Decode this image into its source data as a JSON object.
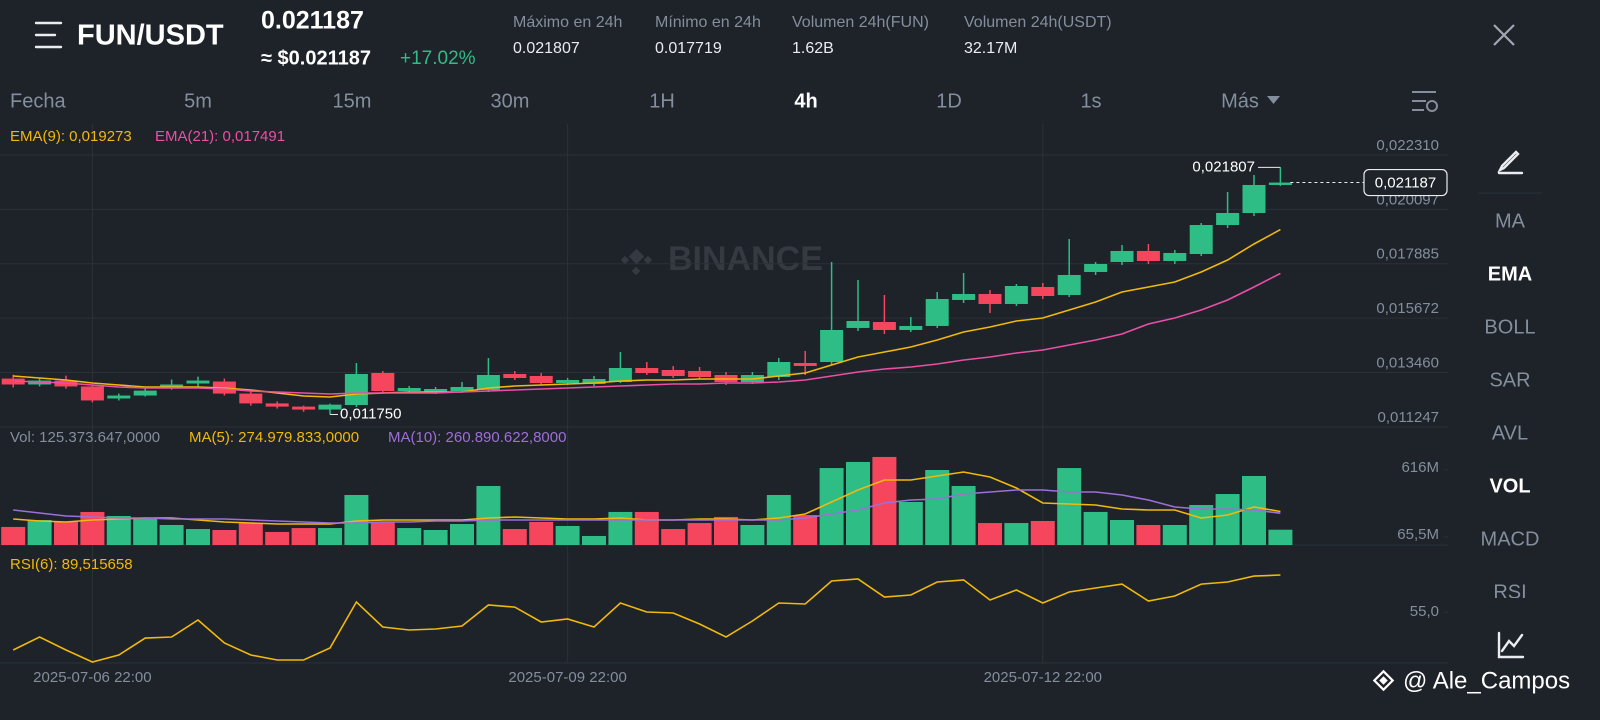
{
  "header": {
    "pair": "FUN/USDT",
    "price": "0.021187",
    "price_usd": "≈ $0.021187",
    "change": "+17.02%",
    "stats": [
      {
        "label": "Máximo en 24h",
        "value": "0.021807"
      },
      {
        "label": "Mínimo en 24h",
        "value": "0.017719"
      },
      {
        "label": "Volumen 24h(FUN)",
        "value": "1.62B"
      },
      {
        "label": "Volumen 24h(USDT)",
        "value": "32.17M"
      }
    ]
  },
  "tabs": [
    {
      "label": "Fecha",
      "active": false
    },
    {
      "label": "5m",
      "active": false
    },
    {
      "label": "15m",
      "active": false
    },
    {
      "label": "30m",
      "active": false
    },
    {
      "label": "1H",
      "active": false
    },
    {
      "label": "4h",
      "active": true
    },
    {
      "label": "1D",
      "active": false
    },
    {
      "label": "1s",
      "active": false
    },
    {
      "label": "Más",
      "active": false
    }
  ],
  "side_menu": [
    {
      "label": "MA",
      "active": false
    },
    {
      "label": "EMA",
      "active": true
    },
    {
      "label": "BOLL",
      "active": false
    },
    {
      "label": "SAR",
      "active": false
    },
    {
      "label": "AVL",
      "active": false
    },
    {
      "label": "VOL",
      "active": true
    },
    {
      "label": "MACD",
      "active": false
    },
    {
      "label": "RSI",
      "active": false
    }
  ],
  "watermark": "BINANCE",
  "credit": "@ Ale_Campos",
  "chart_data": [
    {
      "type": "candlestick",
      "up_color": "#2ebd85",
      "down_color": "#f6465d",
      "categories": [
        null,
        null,
        null,
        "2025-07-06 22:00",
        null,
        null,
        null,
        null,
        null,
        null,
        null,
        null,
        null,
        null,
        null,
        null,
        null,
        null,
        null,
        null,
        null,
        "2025-07-09 22:00",
        null,
        null,
        null,
        null,
        null,
        null,
        null,
        null,
        null,
        null,
        null,
        null,
        null,
        null,
        null,
        null,
        null,
        "2025-07-12 22:00",
        null,
        null,
        null,
        null,
        null,
        null,
        null,
        null,
        null
      ],
      "open": [
        0.01321,
        0.01297,
        0.01313,
        0.01289,
        0.0124,
        0.01252,
        0.01285,
        0.01301,
        0.01309,
        0.0126,
        0.0122,
        0.01207,
        0.01195,
        0.012135,
        0.013438,
        0.012705,
        0.012664,
        0.012705,
        0.012746,
        0.013397,
        0.013316,
        0.01303,
        0.01299,
        0.013071,
        0.013641,
        0.01356,
        0.013519,
        0.013356,
        0.013071,
        0.013275,
        0.013844,
        0.013885,
        0.01527,
        0.015513,
        0.015188,
        0.015351,
        0.016409,
        0.016653,
        0.016246,
        0.016938,
        0.016612,
        0.017548,
        0.017955,
        0.018403,
        0.017996,
        0.01828,
        0.01946,
        0.019949,
        0.021089
      ],
      "high": [
        0.01337,
        0.01321,
        0.01333,
        0.01297,
        0.0126,
        0.01285,
        0.01317,
        0.01329,
        0.01321,
        0.01272,
        0.01228,
        0.01211,
        0.01219,
        0.013844,
        0.013519,
        0.012908,
        0.012868,
        0.013071,
        0.014048,
        0.013519,
        0.013438,
        0.013234,
        0.013316,
        0.014292,
        0.013885,
        0.013723,
        0.013682,
        0.013478,
        0.013478,
        0.014048,
        0.014333,
        0.017955,
        0.017223,
        0.016612,
        0.015717,
        0.016734,
        0.017507,
        0.016815,
        0.01706,
        0.0171,
        0.018891,
        0.017955,
        0.018647,
        0.018688,
        0.018444,
        0.019542,
        0.020804,
        0.021496,
        0.021807
      ],
      "low": [
        0.01285,
        0.01289,
        0.0128,
        0.01224,
        0.01232,
        0.01248,
        0.01276,
        0.01285,
        0.01252,
        0.01211,
        0.01199,
        0.01186,
        0.01175,
        0.012054,
        0.012623,
        0.012623,
        0.012583,
        0.012664,
        0.012664,
        0.013153,
        0.012949,
        0.012949,
        0.012908,
        0.01303,
        0.013356,
        0.013234,
        0.013193,
        0.012949,
        0.01299,
        0.013153,
        0.013356,
        0.013763,
        0.015147,
        0.015025,
        0.015106,
        0.01527,
        0.016286,
        0.015879,
        0.016165,
        0.016449,
        0.01653,
        0.017426,
        0.017833,
        0.017874,
        0.017874,
        0.018199,
        0.019339,
        0.019827,
        0.021049
      ],
      "close": [
        0.01297,
        0.01313,
        0.01289,
        0.01232,
        0.01252,
        0.01272,
        0.01297,
        0.01313,
        0.0126,
        0.0122,
        0.01207,
        0.01195,
        0.01215,
        0.013397,
        0.012705,
        0.012827,
        0.012786,
        0.012868,
        0.013356,
        0.013234,
        0.01303,
        0.013153,
        0.013193,
        0.013641,
        0.013438,
        0.013316,
        0.013275,
        0.013071,
        0.013356,
        0.013885,
        0.013723,
        0.015188,
        0.015554,
        0.015188,
        0.015351,
        0.016449,
        0.016653,
        0.016246,
        0.016978,
        0.016571,
        0.017426,
        0.017874,
        0.018403,
        0.017996,
        0.018321,
        0.01946,
        0.019949,
        0.021089,
        0.021187
      ],
      "series": [
        {
          "name": "EMA(9): 0,019273",
          "type": "line",
          "color": "#f0b90b",
          "values": [
            0.013315,
            0.013234,
            0.013152,
            0.01303,
            0.012949,
            0.012868,
            0.012868,
            0.012868,
            0.012827,
            0.012746,
            0.012623,
            0.012501,
            0.012461,
            0.012583,
            0.012623,
            0.012664,
            0.012664,
            0.012664,
            0.012827,
            0.012908,
            0.012949,
            0.01299,
            0.01303,
            0.013112,
            0.013152,
            0.013152,
            0.013193,
            0.013193,
            0.013193,
            0.013315,
            0.013437,
            0.013763,
            0.014088,
            0.014292,
            0.014495,
            0.01478,
            0.015106,
            0.01531,
            0.015554,
            0.015676,
            0.016001,
            0.016327,
            0.016734,
            0.016938,
            0.017141,
            0.017548,
            0.018036,
            0.018688,
            0.019273
          ]
        },
        {
          "name": "EMA(21): 0,017491",
          "type": "line",
          "color": "#eb4fa6",
          "values": [
            0.013112,
            0.013071,
            0.01303,
            0.012949,
            0.012868,
            0.012827,
            0.012827,
            0.012827,
            0.012786,
            0.012705,
            0.012664,
            0.012623,
            0.012583,
            0.012623,
            0.012623,
            0.012623,
            0.012623,
            0.012664,
            0.012705,
            0.012746,
            0.012786,
            0.012827,
            0.012868,
            0.012908,
            0.012949,
            0.01299,
            0.01299,
            0.01303,
            0.01303,
            0.013071,
            0.013152,
            0.013315,
            0.013478,
            0.0136,
            0.013682,
            0.013804,
            0.013967,
            0.014088,
            0.014251,
            0.014373,
            0.014577,
            0.01478,
            0.015025,
            0.015432,
            0.015676,
            0.016001,
            0.016409,
            0.016938,
            0.017491
          ]
        }
      ],
      "high_label": {
        "value": 0.021807,
        "label": "0,021807"
      },
      "low_label": {
        "value": 0.01175,
        "label": "0,011750"
      },
      "last_price": {
        "value": 0.021187,
        "label": "0,021187"
      },
      "ylim": [
        0.01124,
        0.02357
      ],
      "yticks": [
        {
          "value": 0.02231,
          "label": "0,022310"
        },
        {
          "value": 0.020097,
          "label": "0,020097"
        },
        {
          "value": 0.017885,
          "label": "0,017885"
        },
        {
          "value": 0.015672,
          "label": "0,015672"
        },
        {
          "value": 0.01346,
          "label": "0,013460"
        },
        {
          "value": 0.011247,
          "label": "0,011247"
        }
      ],
      "grid": true
    },
    {
      "type": "bar",
      "series": [
        {
          "name": "Vol: 125.373.647,0000",
          "type": "bar",
          "values": [
            148,
            205,
            189,
            271,
            238,
            221,
            164,
            131,
            123,
            180,
            107,
            139,
            139,
            410,
            189,
            139,
            123,
            172,
            484,
            131,
            189,
            156,
            74,
            271,
            271,
            131,
            180,
            230,
            164,
            410,
            246,
            631,
            681,
            722,
            353,
            615,
            484,
            180,
            180,
            197,
            631,
            271,
            205,
            164,
            164,
            328,
            418,
            566,
            125.373647
          ]
        },
        {
          "name": "MA(5): 274.979.833,0000",
          "type": "line",
          "color": "#f0b90b",
          "values": [
            213,
            197,
            189,
            205,
            213,
            221,
            221,
            205,
            189,
            180,
            172,
            172,
            172,
            197,
            205,
            205,
            205,
            205,
            221,
            230,
            221,
            213,
            213,
            221,
            205,
            205,
            213,
            213,
            205,
            221,
            254,
            353,
            451,
            533,
            533,
            566,
            599,
            558,
            467,
            344,
            336,
            328,
            295,
            287,
            287,
            221,
            246,
            312,
            274.979833
          ]
        },
        {
          "name": "MA(10): 260.890.622,8000",
          "type": "line",
          "color": "#9d6fd8",
          "values": [
            287,
            262,
            238,
            230,
            221,
            221,
            213,
            213,
            213,
            205,
            197,
            189,
            180,
            180,
            189,
            189,
            197,
            197,
            205,
            205,
            205,
            205,
            205,
            205,
            205,
            205,
            205,
            205,
            205,
            205,
            221,
            254,
            287,
            344,
            369,
            377,
            418,
            435,
            451,
            451,
            435,
            435,
            410,
            369,
            312,
            295,
            295,
            287,
            260.890623
          ]
        }
      ],
      "ylim": [
        0,
        779
      ],
      "yticks": [
        {
          "value": 616,
          "label": "616M"
        },
        {
          "value": 65.5,
          "label": "65,5M"
        }
      ],
      "grid": false
    },
    {
      "type": "line",
      "series": [
        {
          "name": "RSI(6): 89,515658",
          "type": "line",
          "color": "#f0b90b",
          "values": [
            20,
            32.1,
            20,
            8.9,
            15.4,
            31.1,
            32.1,
            47.8,
            26.5,
            15.4,
            10.8,
            10.8,
            21.9,
            64.5,
            41.3,
            38.6,
            39.5,
            42.3,
            61.7,
            59.8,
            46,
            48.7,
            41.3,
            63.6,
            55.2,
            54.3,
            44.1,
            32.1,
            46.9,
            63.6,
            62.6,
            83.9,
            85.8,
            69.1,
            71,
            83,
            84.9,
            66.3,
            75.6,
            63.6,
            73.7,
            77.4,
            81.1,
            65.4,
            70,
            81.1,
            83,
            88.5,
            89.515658
          ]
        }
      ],
      "ylim": [
        8,
        108
      ],
      "yticks": [
        {
          "value": 55,
          "label": "55,0"
        }
      ],
      "grid": false
    }
  ]
}
